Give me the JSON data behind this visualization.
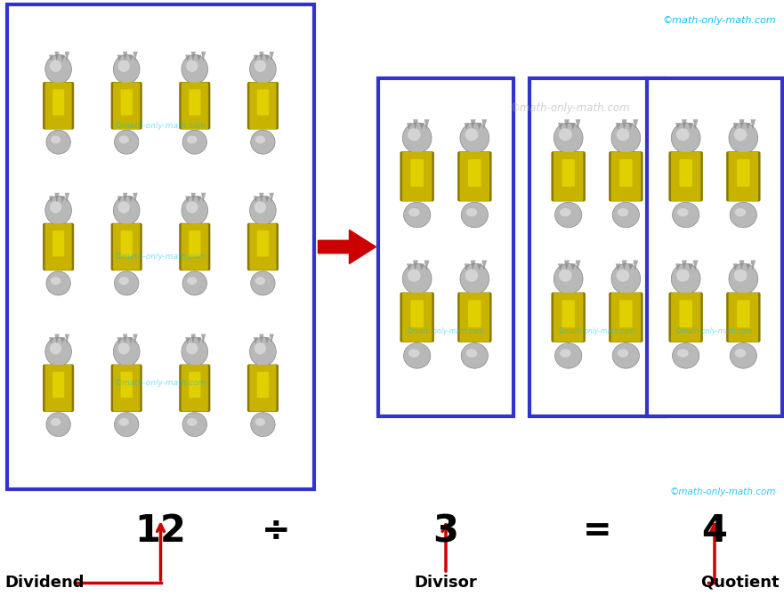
{
  "bg_color": "#ffffff",
  "border_color": "#3333cc",
  "border_lw": 3,
  "arrow_color": "#cc0000",
  "text_color": "#000000",
  "watermark_color": "#00bfff",
  "watermark_text": "©math-only-math.com",
  "dividend": "12",
  "divisor": "3",
  "quotient": "4",
  "div_symbol": "÷",
  "eq_symbol": "=",
  "label_dividend": "Dividend",
  "label_divisor": "Divisor",
  "label_quotient": "Quotient",
  "candy_gold": "#c8b400",
  "candy_gold_light": "#e8d800",
  "candy_gold_dark": "#8a7a00",
  "candy_silver": "#b8b8b8",
  "candy_silver_light": "#e0e0e0",
  "candy_silver_dark": "#888888"
}
